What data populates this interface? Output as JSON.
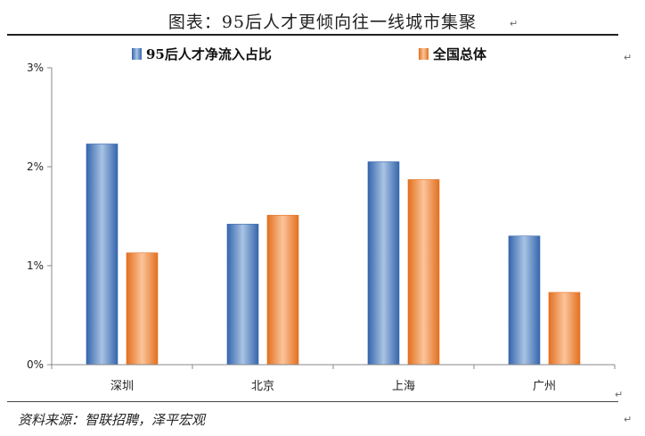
{
  "page": {
    "title": "图表：95后人才更倾向往一线城市集聚",
    "source": "资料来源：智联招聘，泽平宏观",
    "para_mark": "↵"
  },
  "colors": {
    "series_blue": "#4a7fc1",
    "series_orange": "#ee8a3c",
    "axis": "#888888"
  },
  "chart_data": {
    "type": "bar",
    "categories": [
      "深圳",
      "北京",
      "上海",
      "广州"
    ],
    "series": [
      {
        "name": "95后人才净流入占比",
        "values": [
          2.23,
          1.42,
          2.05,
          1.3
        ]
      },
      {
        "name": "全国总体",
        "values": [
          1.13,
          1.51,
          1.87,
          0.73
        ]
      }
    ],
    "ylim": [
      0,
      3
    ],
    "yticks": [
      "0%",
      "1%",
      "2%",
      "3%"
    ],
    "legend_position": "top",
    "grid": false
  }
}
